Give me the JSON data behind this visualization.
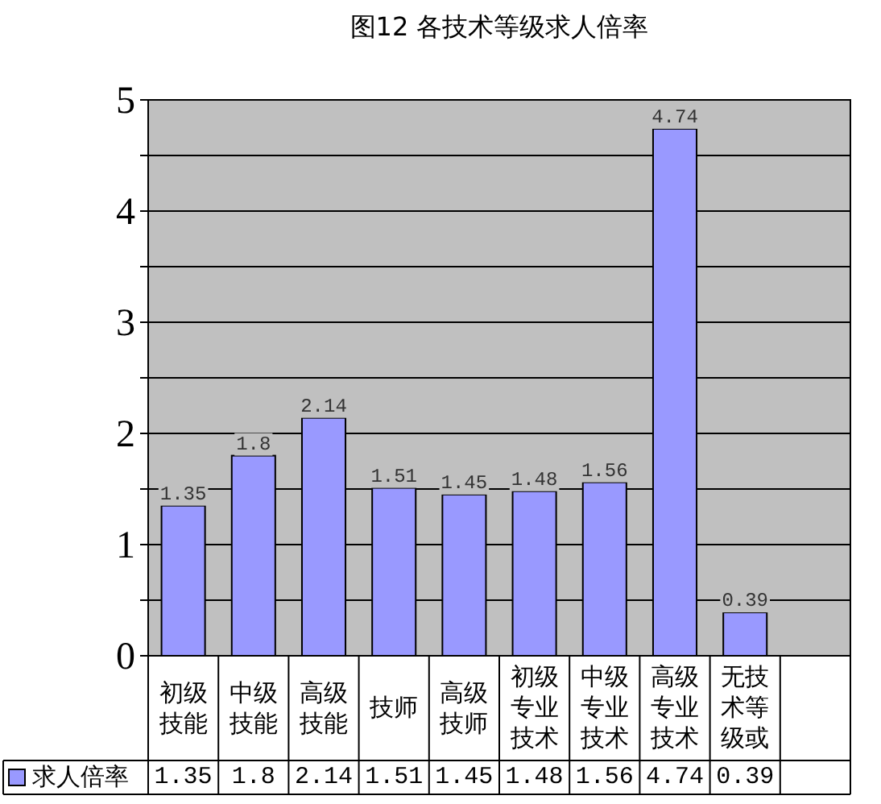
{
  "chart_data": {
    "type": "bar",
    "title": "图12 各技术等级求人倍率",
    "categories": [
      "初级技能",
      "中级技能",
      "高级技能",
      "技师",
      "高级技师",
      "初级专业技术",
      "中级专业技术",
      "高级专业技术",
      "无技术等级或",
      null
    ],
    "series": [
      {
        "name": "求人倍率",
        "color": "#9999ff",
        "values": [
          1.35,
          1.8,
          2.14,
          1.51,
          1.45,
          1.48,
          1.56,
          4.74,
          0.39,
          null
        ]
      }
    ],
    "annotations": [
      {
        "text": "1.35",
        "x": "初级技能",
        "y": 1.35
      },
      {
        "text": "1.8",
        "x": "中级技能",
        "y": 1.8
      },
      {
        "text": "2.14",
        "x": "高级技能",
        "y": 2.14
      },
      {
        "text": "1.51",
        "x": "技师",
        "y": 1.51
      },
      {
        "text": "1.45",
        "x": "高级技师",
        "y": 1.45
      },
      {
        "text": "1.48",
        "x": "初级专业技术",
        "y": 1.48
      },
      {
        "text": "1.56",
        "x": "中级专业技术",
        "y": 1.56
      },
      {
        "text": "4.74",
        "x": "高级专业技术",
        "y": 4.74
      },
      {
        "text": "0.39",
        "x": "无技术等级或",
        "y": 0.39
      }
    ],
    "ylim": [
      0,
      5
    ],
    "yticks": [
      0,
      {
        "value": 0.5,
        "label": null
      },
      1,
      {
        "value": 1.5,
        "label": null
      },
      2,
      {
        "value": 2.5,
        "label": null
      },
      3,
      {
        "value": 3.5,
        "label": null
      },
      4,
      {
        "value": 4.5,
        "label": null
      },
      5
    ],
    "grid": "y",
    "data_labels": true,
    "legend": "bottom"
  }
}
